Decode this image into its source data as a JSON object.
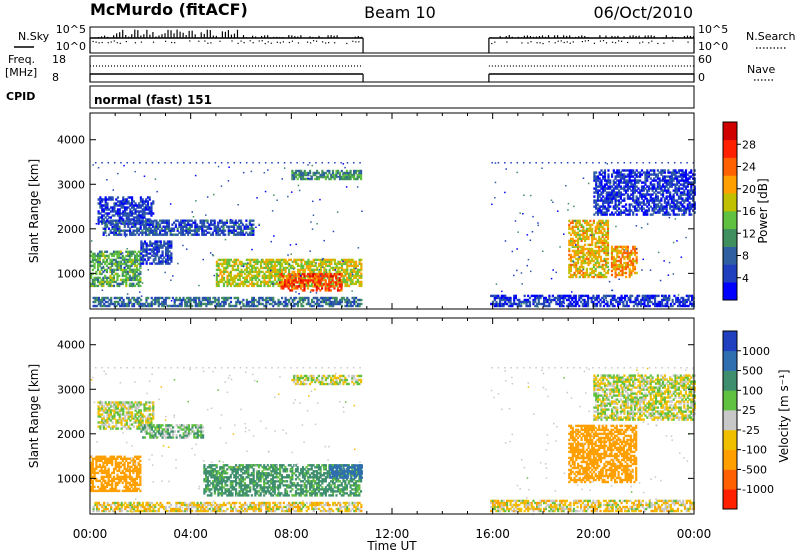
{
  "header": {
    "station": "McMurdo (fitACF)",
    "beam": "Beam 10",
    "date": "06/Oct/2010"
  },
  "strips": {
    "nsky_label": "N.Sky",
    "nsearch_label": "N.Search",
    "freq_label_line1": "Freq.",
    "freq_label_line2": "[MHz]",
    "nave_label": "Nave",
    "cpid_label": "CPID",
    "cpid_value": "normal (fast) 151",
    "noise_ticks": [
      "10^5",
      "10^0"
    ],
    "freq_ticks": [
      "18",
      "8"
    ],
    "nave_ticks": [
      "60",
      "0"
    ]
  },
  "colors": {
    "power": [
      "#0000ff",
      "#1f3fbf",
      "#2f5fa0",
      "#3f8f5f",
      "#60c040",
      "#c0c000",
      "#ffa000",
      "#ff6000",
      "#ff2000",
      "#d00000"
    ],
    "velocity": [
      "#2040c0",
      "#2f6faf",
      "#3f8f6f",
      "#60c040",
      "#c8c8c8",
      "#f0c000",
      "#ffa000",
      "#ff6000",
      "#ff2000"
    ]
  },
  "chart_data": [
    {
      "type": "heatmap",
      "name": "power",
      "ylabel": "Slant Range [km]",
      "colorbar_label": "Power [dB]",
      "colorbar_ticks": [
        "28",
        "24",
        "20",
        "16",
        "12",
        "8",
        "4"
      ],
      "xlim_hours": [
        0,
        24
      ],
      "ylim": [
        200,
        4600
      ],
      "yticks": [
        "4000",
        "3000",
        "2000",
        "1000"
      ],
      "data_gap_hours": [
        10.85,
        15.85
      ],
      "echo_regions": [
        {
          "t0": 0.0,
          "t1": 2.0,
          "r0": 700,
          "r1": 1500,
          "level": 14
        },
        {
          "t0": 0.3,
          "t1": 2.5,
          "r0": 2100,
          "r1": 2700,
          "level": 6
        },
        {
          "t0": 0.5,
          "t1": 6.5,
          "r0": 1850,
          "r1": 2200,
          "level": 8
        },
        {
          "t0": 2.0,
          "t1": 3.2,
          "r0": 1200,
          "r1": 1700,
          "level": 7
        },
        {
          "t0": 5.0,
          "t1": 10.8,
          "r0": 700,
          "r1": 1300,
          "level": 18
        },
        {
          "t0": 7.5,
          "t1": 10.0,
          "r0": 600,
          "r1": 1000,
          "level": 26
        },
        {
          "t0": 0.1,
          "t1": 10.8,
          "r0": 250,
          "r1": 450,
          "level": 10
        },
        {
          "t0": 8.0,
          "t1": 10.8,
          "r0": 3100,
          "r1": 3300,
          "level": 12
        },
        {
          "t0": 15.9,
          "t1": 24.0,
          "r0": 250,
          "r1": 500,
          "level": 6
        },
        {
          "t0": 19.0,
          "t1": 20.6,
          "r0": 900,
          "r1": 2200,
          "level": 20
        },
        {
          "t0": 20.7,
          "t1": 21.7,
          "r0": 900,
          "r1": 1600,
          "level": 22
        },
        {
          "t0": 20.0,
          "t1": 24.0,
          "r0": 2300,
          "r1": 3300,
          "level": 6
        }
      ]
    },
    {
      "type": "heatmap",
      "name": "velocity",
      "xlabel": "Time UT",
      "ylabel": "Slant Range [km]",
      "colorbar_label": "Velocity [m s⁻¹]",
      "colorbar_ticks": [
        "1000",
        "500",
        "100",
        "25",
        "-25",
        "-100",
        "-500",
        "-1000"
      ],
      "xlim_hours": [
        0,
        24
      ],
      "ylim": [
        200,
        4600
      ],
      "yticks": [
        "4000",
        "3000",
        "2000",
        "1000"
      ],
      "xticks": [
        "00:00",
        "04:00",
        "08:00",
        "12:00",
        "16:00",
        "20:00",
        "00:00"
      ],
      "data_gap_hours": [
        10.85,
        15.85
      ],
      "echo_regions": [
        {
          "t0": 0.0,
          "t1": 2.0,
          "r0": 700,
          "r1": 1500,
          "level": -300
        },
        {
          "t0": 0.3,
          "t1": 2.5,
          "r0": 2100,
          "r1": 2700,
          "level": 0
        },
        {
          "t0": 2.0,
          "t1": 4.5,
          "r0": 1900,
          "r1": 2200,
          "level": 80
        },
        {
          "t0": 4.5,
          "t1": 10.8,
          "r0": 600,
          "r1": 1300,
          "level": 150
        },
        {
          "t0": 9.5,
          "t1": 10.8,
          "r0": 1000,
          "r1": 1300,
          "level": 600
        },
        {
          "t0": 0.1,
          "t1": 10.8,
          "r0": 250,
          "r1": 450,
          "level": -50
        },
        {
          "t0": 8.0,
          "t1": 10.8,
          "r0": 3100,
          "r1": 3300,
          "level": 0
        },
        {
          "t0": 15.9,
          "t1": 24.0,
          "r0": 250,
          "r1": 500,
          "level": -40
        },
        {
          "t0": 19.0,
          "t1": 21.7,
          "r0": 900,
          "r1": 2200,
          "level": -400
        },
        {
          "t0": 20.0,
          "t1": 24.0,
          "r0": 2300,
          "r1": 3300,
          "level": 0
        }
      ]
    }
  ]
}
